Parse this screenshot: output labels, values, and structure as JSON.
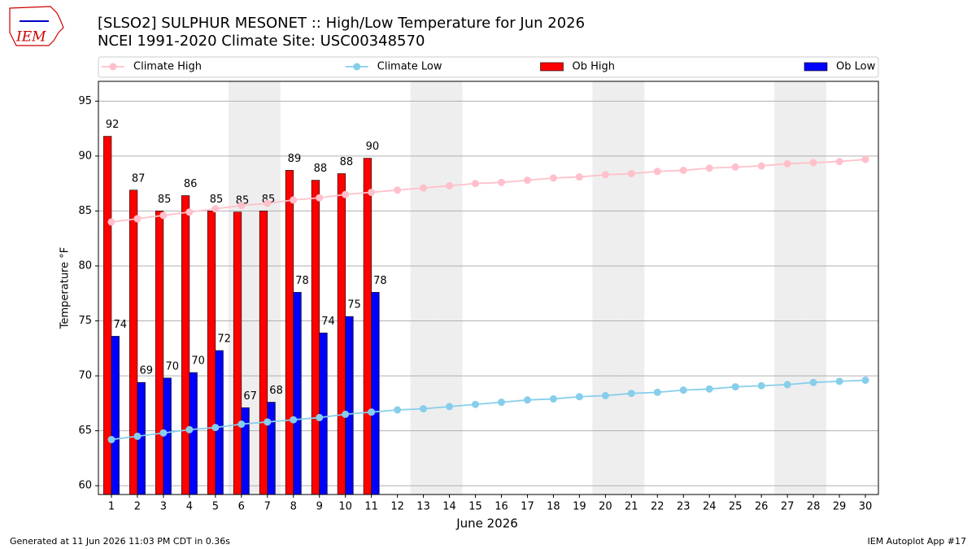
{
  "logo": "IEM",
  "footer": {
    "left": "Generated at 11 Jun 2026 11:03 PM CDT in 0.36s",
    "right": "IEM Autoplot App #17"
  },
  "chart_data": {
    "type": "bar",
    "title": "[SLSO2] SULPHUR MESONET :: High/Low Temperature for Jun 2026",
    "subtitle": "NCEI 1991-2020 Climate Site: USC00348570",
    "xlabel": "June 2026",
    "ylabel": "Temperature °F",
    "x": [
      1,
      2,
      3,
      4,
      5,
      6,
      7,
      8,
      9,
      10,
      11,
      12,
      13,
      14,
      15,
      16,
      17,
      18,
      19,
      20,
      21,
      22,
      23,
      24,
      25,
      26,
      27,
      28,
      29,
      30
    ],
    "xlim": [
      0.5,
      30.5
    ],
    "ylim": [
      59.2,
      96.8
    ],
    "xticks": [
      1,
      2,
      3,
      4,
      5,
      6,
      7,
      8,
      9,
      10,
      11,
      12,
      13,
      14,
      15,
      16,
      17,
      18,
      19,
      20,
      21,
      22,
      23,
      24,
      25,
      26,
      27,
      28,
      29,
      30
    ],
    "yticks": [
      60,
      65,
      70,
      75,
      80,
      85,
      90,
      95
    ],
    "grid": true,
    "shaded_days": [
      6,
      7,
      13,
      14,
      20,
      21,
      27,
      28
    ],
    "shade_color": "#eeeeee",
    "series": [
      {
        "name": "Climate High",
        "type": "line",
        "color": "#ffc0cb",
        "values": [
          84.0,
          84.3,
          84.6,
          84.9,
          85.2,
          85.5,
          85.7,
          86.0,
          86.2,
          86.5,
          86.7,
          86.9,
          87.1,
          87.3,
          87.5,
          87.6,
          87.8,
          88.0,
          88.1,
          88.3,
          88.4,
          88.6,
          88.7,
          88.9,
          89.0,
          89.1,
          89.3,
          89.4,
          89.5,
          89.7
        ]
      },
      {
        "name": "Climate Low",
        "type": "line",
        "color": "#87ceeb",
        "values": [
          64.2,
          64.5,
          64.8,
          65.1,
          65.3,
          65.6,
          65.8,
          66.0,
          66.2,
          66.5,
          66.7,
          66.9,
          67.0,
          67.2,
          67.4,
          67.6,
          67.8,
          67.9,
          68.1,
          68.2,
          68.4,
          68.5,
          68.7,
          68.8,
          69.0,
          69.1,
          69.2,
          69.4,
          69.5,
          69.6
        ]
      },
      {
        "name": "Ob High",
        "type": "bar",
        "color": "#ff0000",
        "values": [
          91.8,
          86.9,
          85.0,
          86.4,
          85.0,
          84.9,
          85.0,
          88.7,
          87.8,
          88.4,
          89.8,
          null,
          null,
          null,
          null,
          null,
          null,
          null,
          null,
          null,
          null,
          null,
          null,
          null,
          null,
          null,
          null,
          null,
          null,
          null
        ],
        "value_labels": [
          "92",
          "87",
          "85",
          "86",
          "85",
          "85",
          "85",
          "89",
          "88",
          "88",
          "90",
          null,
          null,
          null,
          null,
          null,
          null,
          null,
          null,
          null,
          null,
          null,
          null,
          null,
          null,
          null,
          null,
          null,
          null,
          null
        ]
      },
      {
        "name": "Ob Low",
        "type": "bar",
        "color": "#0000ff",
        "values": [
          73.6,
          69.4,
          69.8,
          70.3,
          72.3,
          67.1,
          67.6,
          77.6,
          73.9,
          75.4,
          77.6,
          null,
          null,
          null,
          null,
          null,
          null,
          null,
          null,
          null,
          null,
          null,
          null,
          null,
          null,
          null,
          null,
          null,
          null,
          null
        ],
        "value_labels": [
          "74",
          "69",
          "70",
          "70",
          "72",
          "67",
          "68",
          "78",
          "74",
          "75",
          "78",
          null,
          null,
          null,
          null,
          null,
          null,
          null,
          null,
          null,
          null,
          null,
          null,
          null,
          null,
          null,
          null,
          null,
          null,
          null
        ]
      }
    ]
  }
}
